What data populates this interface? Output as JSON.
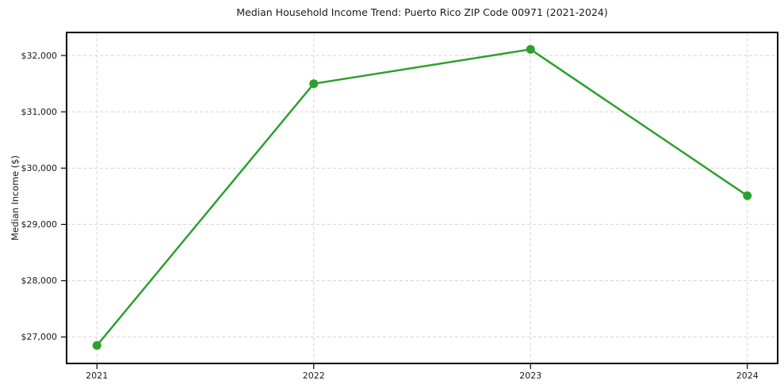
{
  "figure": {
    "title": "Median Household Income Trend: Puerto Rico ZIP Code 00971 (2021-2024)",
    "ylabel": "Median Income ($)"
  },
  "chart_data": {
    "type": "line",
    "title": "Median Household Income Trend: Puerto Rico ZIP Code 00971 (2021-2024)",
    "xlabel": "",
    "ylabel": "Median Income ($)",
    "series_name": "Median household income",
    "categories": [
      "2021",
      "2022",
      "2023",
      "2024"
    ],
    "x": [
      2021,
      2022,
      2023,
      2024
    ],
    "values": [
      26850,
      31500,
      32110,
      29510
    ],
    "xlim": [
      2020.86,
      2024.14
    ],
    "ylim": [
      26530,
      32410
    ],
    "yticks": [
      27000,
      28000,
      29000,
      30000,
      31000,
      32000
    ],
    "ytick_labels": [
      "$27,000",
      "$28,000",
      "$29,000",
      "$30,000",
      "$31,000",
      "$32,000"
    ],
    "grid": true,
    "grid_style": "dashed",
    "grid_color": "#d5d5d5",
    "axis_color": "#000000",
    "text_color": "#1a1a1a",
    "line_color": "#2ca02c",
    "marker": "circle",
    "legend_position": "none"
  }
}
